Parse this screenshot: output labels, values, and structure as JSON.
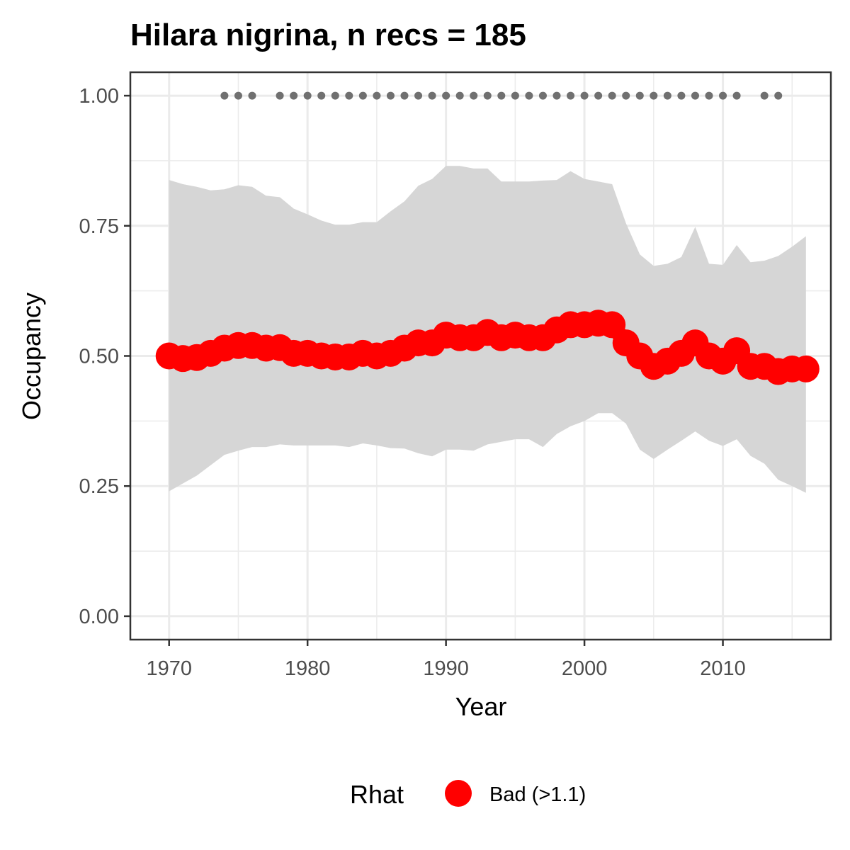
{
  "chart_data": {
    "type": "line",
    "title": "Hilara nigrina, n recs = 185",
    "xlabel": "Year",
    "ylabel": "Occupancy",
    "xlim": [
      1967.2,
      2017.8
    ],
    "ylim": [
      -0.045,
      1.045
    ],
    "x_ticks": [
      1970,
      1980,
      1990,
      2000,
      2010
    ],
    "x_tick_labels": [
      "1970",
      "1980",
      "1990",
      "2000",
      "2010"
    ],
    "y_ticks": [
      0,
      0.25,
      0.5,
      0.75,
      1
    ],
    "y_tick_labels": [
      "0.00",
      "0.25",
      "0.50",
      "0.75",
      "1.00"
    ],
    "grid": true,
    "colors": {
      "series": "#ff0000",
      "band": "#d6d6d6",
      "records": "#707070",
      "grid": "#ebebeb",
      "axis": "#333333"
    },
    "x": [
      1970,
      1971,
      1972,
      1973,
      1974,
      1975,
      1976,
      1977,
      1978,
      1979,
      1980,
      1981,
      1982,
      1983,
      1984,
      1985,
      1986,
      1987,
      1988,
      1989,
      1990,
      1991,
      1992,
      1993,
      1994,
      1995,
      1996,
      1997,
      1998,
      1999,
      2000,
      2001,
      2002,
      2003,
      2004,
      2005,
      2006,
      2007,
      2008,
      2009,
      2010,
      2011,
      2012,
      2013,
      2014,
      2015,
      2016
    ],
    "series": [
      {
        "values": [
          0.5,
          0.495,
          0.497,
          0.505,
          0.515,
          0.52,
          0.52,
          0.515,
          0.516,
          0.505,
          0.505,
          0.5,
          0.498,
          0.498,
          0.505,
          0.5,
          0.505,
          0.515,
          0.525,
          0.525,
          0.54,
          0.535,
          0.535,
          0.545,
          0.535,
          0.54,
          0.535,
          0.535,
          0.55,
          0.56,
          0.56,
          0.563,
          0.56,
          0.525,
          0.5,
          0.48,
          0.49,
          0.505,
          0.525,
          0.5,
          0.49,
          0.51,
          0.48,
          0.48,
          0.47,
          0.475,
          0.475
        ],
        "lower": [
          0.24,
          0.255,
          0.27,
          0.29,
          0.31,
          0.318,
          0.325,
          0.325,
          0.33,
          0.328,
          0.328,
          0.328,
          0.328,
          0.325,
          0.332,
          0.328,
          0.323,
          0.322,
          0.313,
          0.307,
          0.32,
          0.32,
          0.318,
          0.33,
          0.335,
          0.34,
          0.34,
          0.325,
          0.35,
          0.365,
          0.375,
          0.39,
          0.39,
          0.37,
          0.32,
          0.302,
          0.32,
          0.337,
          0.355,
          0.337,
          0.327,
          0.34,
          0.308,
          0.293,
          0.262,
          0.25,
          0.237
        ],
        "upper": [
          0.838,
          0.83,
          0.825,
          0.818,
          0.82,
          0.828,
          0.825,
          0.808,
          0.805,
          0.783,
          0.772,
          0.76,
          0.752,
          0.752,
          0.757,
          0.757,
          0.778,
          0.797,
          0.827,
          0.84,
          0.865,
          0.865,
          0.86,
          0.86,
          0.835,
          0.835,
          0.835,
          0.837,
          0.838,
          0.855,
          0.84,
          0.835,
          0.83,
          0.755,
          0.695,
          0.673,
          0.677,
          0.69,
          0.748,
          0.677,
          0.675,
          0.713,
          0.68,
          0.683,
          0.692,
          0.71,
          0.73
        ]
      }
    ],
    "record_years": [
      1974,
      1975,
      1976,
      1978,
      1979,
      1980,
      1981,
      1982,
      1983,
      1984,
      1985,
      1986,
      1987,
      1988,
      1989,
      1990,
      1991,
      1992,
      1993,
      1994,
      1995,
      1996,
      1997,
      1998,
      1999,
      2000,
      2001,
      2002,
      2003,
      2004,
      2005,
      2006,
      2007,
      2008,
      2009,
      2010,
      2011,
      2013,
      2014
    ],
    "record_y": 1.0,
    "legend": {
      "title": "Rhat",
      "label": "Bad (>1.1)",
      "position": "bottom"
    }
  }
}
